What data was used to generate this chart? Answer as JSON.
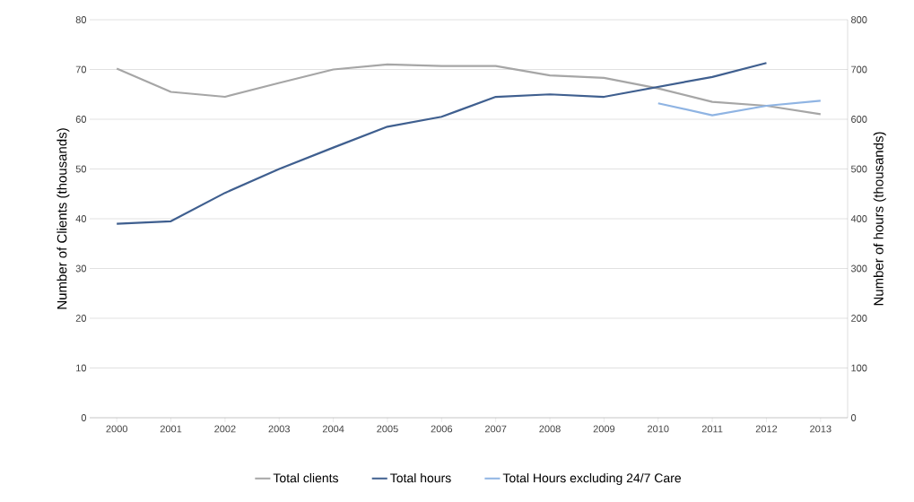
{
  "chart_data": {
    "type": "line",
    "categories": [
      "2000",
      "2001",
      "2002",
      "2003",
      "2004",
      "2005",
      "2006",
      "2007",
      "2008",
      "2009",
      "2010",
      "2011",
      "2012",
      "2013"
    ],
    "ylabel": "Number of Clients (thousands)",
    "y2label": "Number of hours (thousands)",
    "ylim": [
      0,
      80
    ],
    "yticks": [
      0,
      10,
      20,
      30,
      40,
      50,
      60,
      70,
      80
    ],
    "y2lim": [
      0,
      800
    ],
    "y2ticks": [
      0,
      100,
      200,
      300,
      400,
      500,
      600,
      700,
      800
    ],
    "grid": "y",
    "legend": "bottom",
    "marker": "none",
    "line_style": "solid",
    "series": [
      {
        "name": "Total clients",
        "color": "#a6a6a6",
        "values": [
          70.2,
          65.5,
          64.5,
          67.3,
          70,
          71,
          70.7,
          70.7,
          68.8,
          68.3,
          66.2,
          63.5,
          62.7,
          61
        ]
      },
      {
        "name": "Total hours",
        "color": "#3f5f8f",
        "axis": "y2",
        "values": [
          390,
          395,
          452,
          500,
          543,
          585,
          605,
          645,
          650,
          645,
          665,
          685,
          713,
          null
        ]
      },
      {
        "name": "Total Hours excluding 24/7 Care",
        "color": "#8fb4e3",
        "axis": "y2",
        "values": [
          null,
          null,
          null,
          null,
          null,
          null,
          null,
          null,
          null,
          null,
          632,
          608,
          627,
          637
        ]
      }
    ]
  }
}
